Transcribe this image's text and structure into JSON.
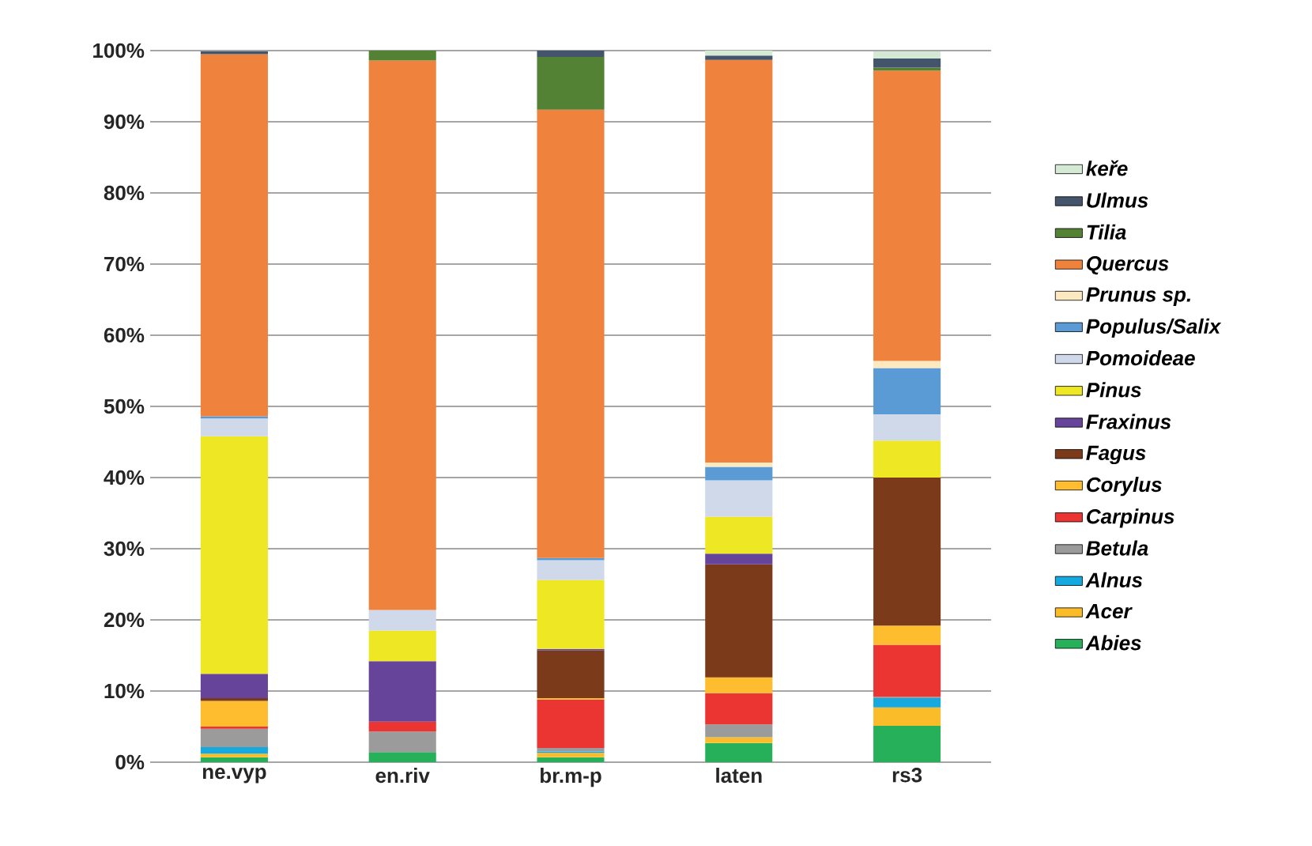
{
  "chart_data": {
    "type": "bar",
    "stacked": true,
    "categories": [
      "ne.vyp",
      "en.riv",
      "br.m-p",
      "laten",
      "rs3"
    ],
    "series": [
      {
        "name": "Abies",
        "color": "#26b05a",
        "values": [
          0.7,
          1.4,
          0.7,
          2.7,
          5.1
        ]
      },
      {
        "name": "Acer",
        "color": "#fbbc2a",
        "values": [
          0.5,
          null,
          0.6,
          0.8,
          2.6
        ]
      },
      {
        "name": "Alnus",
        "color": "#16a9e0",
        "values": [
          0.9,
          null,
          0.2,
          null,
          1.3
        ]
      },
      {
        "name": "Betula",
        "color": "#9b9b9b",
        "values": [
          2.6,
          2.9,
          0.5,
          1.8,
          0.2
        ]
      },
      {
        "name": "Carpinus",
        "color": "#eb3533",
        "values": [
          0.3,
          1.4,
          6.8,
          4.4,
          7.3
        ]
      },
      {
        "name": "Corylus",
        "color": "#fdbd2e",
        "values": [
          3.6,
          null,
          0.2,
          2.2,
          2.7
        ]
      },
      {
        "name": "Fagus",
        "color": "#7b3b1a",
        "values": [
          0.4,
          null,
          6.7,
          15.9,
          20.8
        ]
      },
      {
        "name": "Fraxinus",
        "color": "#66449a",
        "values": [
          3.4,
          8.5,
          0.2,
          1.5,
          null
        ]
      },
      {
        "name": "Pinus",
        "color": "#eee824",
        "values": [
          33.4,
          4.3,
          9.7,
          5.2,
          5.2
        ]
      },
      {
        "name": "Pomoideae",
        "color": "#d0d9ea",
        "values": [
          2.5,
          2.9,
          2.8,
          5.1,
          3.7
        ]
      },
      {
        "name": "Populus/Salix",
        "color": "#5b9bd5",
        "values": [
          0.3,
          null,
          0.3,
          1.9,
          6.5
        ]
      },
      {
        "name": "Prunus sp.",
        "color": "#fde9c0",
        "values": [
          null,
          null,
          null,
          0.6,
          1.0
        ]
      },
      {
        "name": "Quercus",
        "color": "#ef823c",
        "values": [
          50.9,
          77.2,
          63.0,
          56.6,
          40.8
        ]
      },
      {
        "name": "Tilia",
        "color": "#548235",
        "values": [
          null,
          1.4,
          7.4,
          null,
          0.4
        ]
      },
      {
        "name": "Ulmus",
        "color": "#44546a",
        "values": [
          0.4,
          null,
          0.9,
          0.6,
          1.3
        ]
      },
      {
        "name": "keře",
        "color": "#d5ead5",
        "values": [
          null,
          null,
          null,
          0.7,
          1.0
        ]
      }
    ],
    "ylim": [
      0,
      100
    ],
    "yticks": [
      {
        "value": 0,
        "label": "0%"
      },
      {
        "value": 10,
        "label": "10%"
      },
      {
        "value": 20,
        "label": "20%"
      },
      {
        "value": 30,
        "label": "30%"
      },
      {
        "value": 40,
        "label": "40%"
      },
      {
        "value": 50,
        "label": "50%"
      },
      {
        "value": 60,
        "label": "60%"
      },
      {
        "value": 70,
        "label": "70%"
      },
      {
        "value": 80,
        "label": "80%"
      },
      {
        "value": 90,
        "label": "90%"
      },
      {
        "value": 100,
        "label": "100%"
      }
    ],
    "grid": "y",
    "legend": "right"
  }
}
